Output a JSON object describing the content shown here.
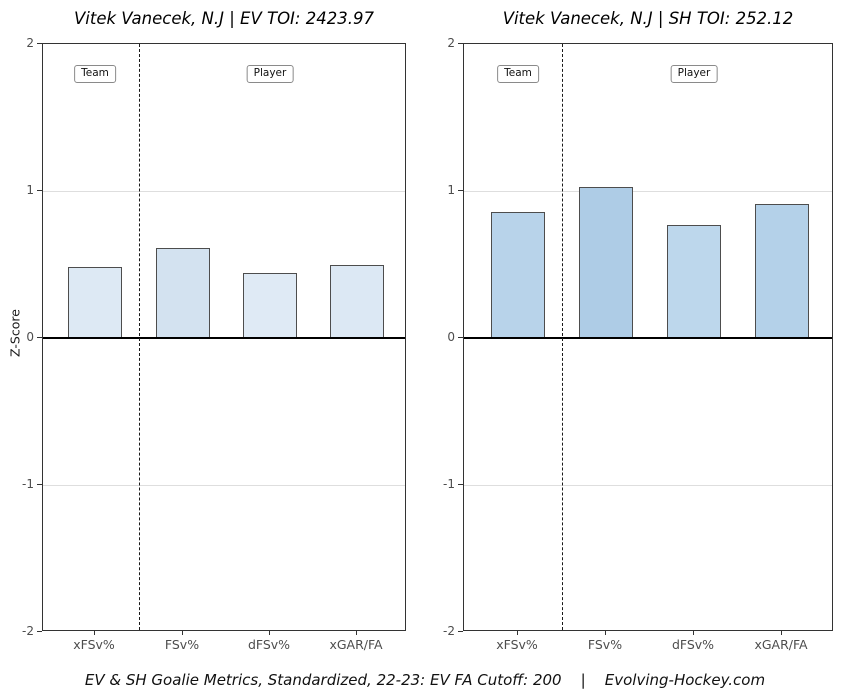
{
  "figure": {
    "caption": "EV & SH Goalie Metrics, Standardized, 22-23: EV FA Cutoff: 200    |    Evolving-Hockey.com"
  },
  "colors": {
    "bar_border": "#4d4d4d",
    "gridline": "#dedede",
    "zero_line": "#000000",
    "panel_border": "#333333"
  },
  "chart_data": [
    {
      "type": "bar",
      "title": "Vitek Vanecek, N.J | EV TOI: 2423.97",
      "ylabel": "Z-Score",
      "xlabel": "",
      "categories": [
        "xFSv%",
        "FSv%",
        "dFSv%",
        "xGAR/FA"
      ],
      "values": [
        0.48,
        0.61,
        0.44,
        0.5
      ],
      "bar_colors": [
        "#dde9f4",
        "#d3e2f0",
        "#dfeaf5",
        "#dce8f4"
      ],
      "ylim": [
        -2,
        2
      ],
      "yticks": [
        2,
        1,
        0,
        -1,
        -2
      ],
      "gridlines_at": [
        1,
        -1
      ],
      "zero_line_at": 0,
      "legend_position": "none",
      "annotations": {
        "team": "Team",
        "player": "Player"
      },
      "divider": "dashed vertical line between Team and Player sections"
    },
    {
      "type": "bar",
      "title": "Vitek Vanecek, N.J | SH TOI: 252.12",
      "ylabel": "",
      "xlabel": "",
      "categories": [
        "xFSv%",
        "FSv%",
        "dFSv%",
        "xGAR/FA"
      ],
      "values": [
        0.86,
        1.03,
        0.77,
        0.91
      ],
      "bar_colors": [
        "#b8d3ea",
        "#aecce6",
        "#bdd7ec",
        "#b4d1e9"
      ],
      "ylim": [
        -2,
        2
      ],
      "yticks": [
        2,
        1,
        0,
        -1,
        -2
      ],
      "gridlines_at": [
        1,
        -1
      ],
      "zero_line_at": 0,
      "legend_position": "none",
      "annotations": {
        "team": "Team",
        "player": "Player"
      },
      "divider": "dashed vertical line between Team and Player sections"
    }
  ]
}
